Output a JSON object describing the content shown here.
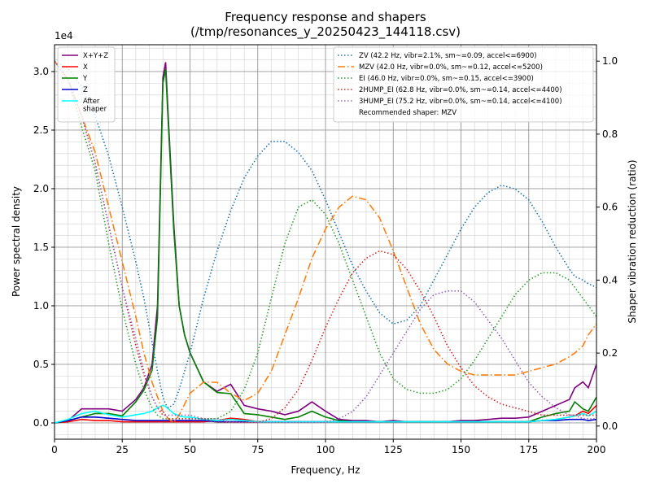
{
  "chart_data": {
    "type": "line",
    "title": "Frequency response and shapers",
    "subtitle": "(/tmp/resonances_y_20250423_144118.csv)",
    "xlabel": "Frequency, Hz",
    "ylabel": "Power spectral density",
    "y2label": "Shaper vibration reduction (ratio)",
    "y_offset_label": "1e4",
    "recommendation": "Recommended shaper: MZV",
    "grid": true,
    "minor_grid": true,
    "x_minor_step": 5,
    "y_minor_step": 0.1,
    "legend_loc": "upper left",
    "legend2_loc": "upper right",
    "xlim": [
      0,
      200
    ],
    "xticks": [
      0,
      25,
      50,
      75,
      100,
      125,
      150,
      175,
      200
    ],
    "ylim": [
      -0.139,
      3.229
    ],
    "yticks": [
      {
        "value": 0,
        "label": "0.0"
      },
      {
        "value": 0.5,
        "label": "0.5"
      },
      {
        "value": 1,
        "label": "1.0"
      },
      {
        "value": 1.5,
        "label": "1.5"
      },
      {
        "value": 2,
        "label": "2.0"
      },
      {
        "value": 2.5,
        "label": "2.5"
      },
      {
        "value": 3,
        "label": "3.0"
      }
    ],
    "y2lim": [
      -0.036,
      1.045
    ],
    "y2ticks": [
      {
        "value": 0,
        "label": "0.0"
      },
      {
        "value": 0.2,
        "label": "0.2"
      },
      {
        "value": 0.4,
        "label": "0.4"
      },
      {
        "value": 0.6,
        "label": "0.6"
      },
      {
        "value": 0.8,
        "label": "0.8"
      },
      {
        "value": 1,
        "label": "1.0"
      }
    ],
    "x": [
      0,
      5,
      10,
      15,
      20,
      25,
      30,
      33,
      36,
      38,
      40,
      41,
      42,
      44,
      46,
      48,
      50,
      55,
      60,
      65,
      70,
      75,
      80,
      85,
      90,
      95,
      100,
      105,
      110,
      115,
      120,
      125,
      130,
      135,
      140,
      145,
      150,
      155,
      160,
      165,
      170,
      175,
      180,
      185,
      190,
      192,
      195,
      197,
      200
    ],
    "series": [
      {
        "name": "X+Y+Z",
        "color": "#800080",
        "linestyle": "solid",
        "axis": "y",
        "legend": 1,
        "values": [
          0,
          0.02,
          0.12,
          0.12,
          0.12,
          0.1,
          0.2,
          0.3,
          0.5,
          1.0,
          2.95,
          3.08,
          2.6,
          1.7,
          1.0,
          0.75,
          0.6,
          0.35,
          0.27,
          0.33,
          0.15,
          0.12,
          0.1,
          0.07,
          0.1,
          0.18,
          0.1,
          0.03,
          0.02,
          0.02,
          0.01,
          0.02,
          0.01,
          0.01,
          0.01,
          0.01,
          0.02,
          0.02,
          0.03,
          0.04,
          0.04,
          0.05,
          0.1,
          0.15,
          0.2,
          0.3,
          0.35,
          0.3,
          0.5
        ]
      },
      {
        "name": "X",
        "color": "#ff0000",
        "linestyle": "solid",
        "axis": "y",
        "legend": 1,
        "values": [
          0,
          0.01,
          0.03,
          0.02,
          0.02,
          0.01,
          0.01,
          0.01,
          0.01,
          0.01,
          0.01,
          0.01,
          0.01,
          0.01,
          0.01,
          0.01,
          0.01,
          0.01,
          0.02,
          0.04,
          0.03,
          0.01,
          0.01,
          0.01,
          0.01,
          0.01,
          0.01,
          0.01,
          0.01,
          0.01,
          0.01,
          0.01,
          0.01,
          0.01,
          0.01,
          0.01,
          0.01,
          0.01,
          0.01,
          0.01,
          0.01,
          0.01,
          0.02,
          0.03,
          0.05,
          0.06,
          0.1,
          0.08,
          0.15
        ]
      },
      {
        "name": "Y",
        "color": "#008000",
        "linestyle": "solid",
        "axis": "y",
        "legend": 1,
        "values": [
          0,
          0.02,
          0.05,
          0.08,
          0.08,
          0.06,
          0.18,
          0.28,
          0.45,
          0.9,
          2.9,
          3.02,
          2.55,
          1.65,
          1.0,
          0.75,
          0.6,
          0.35,
          0.26,
          0.25,
          0.08,
          0.07,
          0.05,
          0.03,
          0.05,
          0.1,
          0.05,
          0.02,
          0.01,
          0.01,
          0.01,
          0.01,
          0.01,
          0.01,
          0.01,
          0.01,
          0.01,
          0.01,
          0.01,
          0.01,
          0.01,
          0.01,
          0.05,
          0.08,
          0.1,
          0.18,
          0.12,
          0.1,
          0.22
        ]
      },
      {
        "name": "Z",
        "color": "#0000cd",
        "linestyle": "solid",
        "axis": "y",
        "legend": 1,
        "values": [
          0,
          0.02,
          0.05,
          0.05,
          0.04,
          0.03,
          0.02,
          0.02,
          0.02,
          0.02,
          0.02,
          0.02,
          0.02,
          0.02,
          0.02,
          0.02,
          0.02,
          0.02,
          0.01,
          0.01,
          0.01,
          0.01,
          0.01,
          0.01,
          0.01,
          0.01,
          0.01,
          0.01,
          0.01,
          0.01,
          0.01,
          0.01,
          0.01,
          0.01,
          0.01,
          0.01,
          0.01,
          0.01,
          0.01,
          0.01,
          0.01,
          0.01,
          0.02,
          0.02,
          0.03,
          0.03,
          0.03,
          0.02,
          0.03
        ]
      },
      {
        "name": "After\nshaper",
        "color": "#00ffff",
        "linestyle": "solid",
        "axis": "y",
        "legend": 1,
        "values": [
          0,
          0.03,
          0.08,
          0.1,
          0.07,
          0.05,
          0.07,
          0.08,
          0.1,
          0.13,
          0.15,
          0.14,
          0.12,
          0.08,
          0.06,
          0.05,
          0.05,
          0.03,
          0.02,
          0.03,
          0.02,
          0.01,
          0.01,
          0.01,
          0.01,
          0.01,
          0.01,
          0.01,
          0.01,
          0.01,
          0.01,
          0.01,
          0.01,
          0.01,
          0.01,
          0.01,
          0.01,
          0.01,
          0.01,
          0.01,
          0.01,
          0.01,
          0.02,
          0.03,
          0.05,
          0.06,
          0.08,
          0.06,
          0.1
        ]
      },
      {
        "name": "ZV (42.2 Hz, vibr=2.1%, sm~=0.09, accel<=6900)",
        "color": "#1f77b4",
        "linestyle": "dotted",
        "axis": "y2",
        "legend": 2,
        "values": [
          1.0,
          0.98,
          0.93,
          0.85,
          0.74,
          0.6,
          0.45,
          0.35,
          0.23,
          0.15,
          0.08,
          0.06,
          0.05,
          0.06,
          0.1,
          0.15,
          0.2,
          0.35,
          0.48,
          0.59,
          0.68,
          0.74,
          0.78,
          0.78,
          0.75,
          0.7,
          0.62,
          0.53,
          0.44,
          0.37,
          0.31,
          0.28,
          0.29,
          0.33,
          0.4,
          0.47,
          0.54,
          0.6,
          0.64,
          0.66,
          0.65,
          0.62,
          0.56,
          0.49,
          0.43,
          0.41,
          0.4,
          0.39,
          0.38
        ]
      },
      {
        "name": "MZV (42.0 Hz, vibr=0.0%, sm~=0.12, accel<=5200)",
        "color": "#ff7f0e",
        "linestyle": "dashdot",
        "axis": "y2",
        "legend": 2,
        "values": [
          1.0,
          0.95,
          0.85,
          0.75,
          0.6,
          0.45,
          0.3,
          0.2,
          0.12,
          0.08,
          0.04,
          0.03,
          0.02,
          0.01,
          0.03,
          0.06,
          0.09,
          0.12,
          0.12,
          0.09,
          0.07,
          0.09,
          0.15,
          0.25,
          0.35,
          0.46,
          0.54,
          0.6,
          0.63,
          0.62,
          0.57,
          0.48,
          0.38,
          0.28,
          0.21,
          0.17,
          0.15,
          0.14,
          0.14,
          0.14,
          0.14,
          0.15,
          0.16,
          0.17,
          0.19,
          0.2,
          0.22,
          0.25,
          0.28
        ]
      },
      {
        "name": "EI (46.0 Hz, vibr=0.0%, sm~=0.15, accel<=3900)",
        "color": "#2ca02c",
        "linestyle": "dotted",
        "axis": "y2",
        "legend": 2,
        "values": [
          1.0,
          0.95,
          0.82,
          0.7,
          0.5,
          0.32,
          0.17,
          0.1,
          0.05,
          0.03,
          0.02,
          0.02,
          0.02,
          0.02,
          0.02,
          0.02,
          0.02,
          0.02,
          0.02,
          0.04,
          0.1,
          0.2,
          0.35,
          0.5,
          0.6,
          0.62,
          0.58,
          0.5,
          0.4,
          0.3,
          0.2,
          0.13,
          0.1,
          0.09,
          0.09,
          0.1,
          0.13,
          0.18,
          0.24,
          0.3,
          0.36,
          0.4,
          0.42,
          0.42,
          0.4,
          0.38,
          0.35,
          0.33,
          0.3
        ]
      },
      {
        "name": "2HUMP_EI (62.8 Hz, vibr=0.0%, sm~=0.14, accel<=4400)",
        "color": "#d62728",
        "linestyle": "dotted",
        "axis": "y2",
        "legend": 2,
        "values": [
          1.0,
          0.95,
          0.85,
          0.72,
          0.55,
          0.38,
          0.22,
          0.14,
          0.08,
          0.05,
          0.03,
          0.03,
          0.02,
          0.02,
          0.02,
          0.02,
          0.02,
          0.02,
          0.01,
          0.01,
          0.01,
          0.01,
          0.02,
          0.05,
          0.1,
          0.18,
          0.27,
          0.35,
          0.42,
          0.46,
          0.48,
          0.47,
          0.43,
          0.37,
          0.3,
          0.22,
          0.16,
          0.11,
          0.08,
          0.06,
          0.05,
          0.04,
          0.03,
          0.03,
          0.03,
          0.03,
          0.03,
          0.03,
          0.03
        ]
      },
      {
        "name": "3HUMP_EI (75.2 Hz, vibr=0.0%, sm~=0.14, accel<=4100)",
        "color": "#9467bd",
        "linestyle": "dotted",
        "axis": "y2",
        "legend": 2,
        "values": [
          1.0,
          0.95,
          0.85,
          0.72,
          0.55,
          0.38,
          0.24,
          0.15,
          0.08,
          0.05,
          0.04,
          0.03,
          0.03,
          0.03,
          0.03,
          0.03,
          0.03,
          0.02,
          0.02,
          0.01,
          0.01,
          0.01,
          0.01,
          0.01,
          0.01,
          0.01,
          0.01,
          0.02,
          0.04,
          0.08,
          0.14,
          0.2,
          0.26,
          0.32,
          0.36,
          0.37,
          0.37,
          0.34,
          0.29,
          0.24,
          0.18,
          0.12,
          0.08,
          0.05,
          0.03,
          0.03,
          0.02,
          0.02,
          0.02
        ]
      }
    ]
  }
}
